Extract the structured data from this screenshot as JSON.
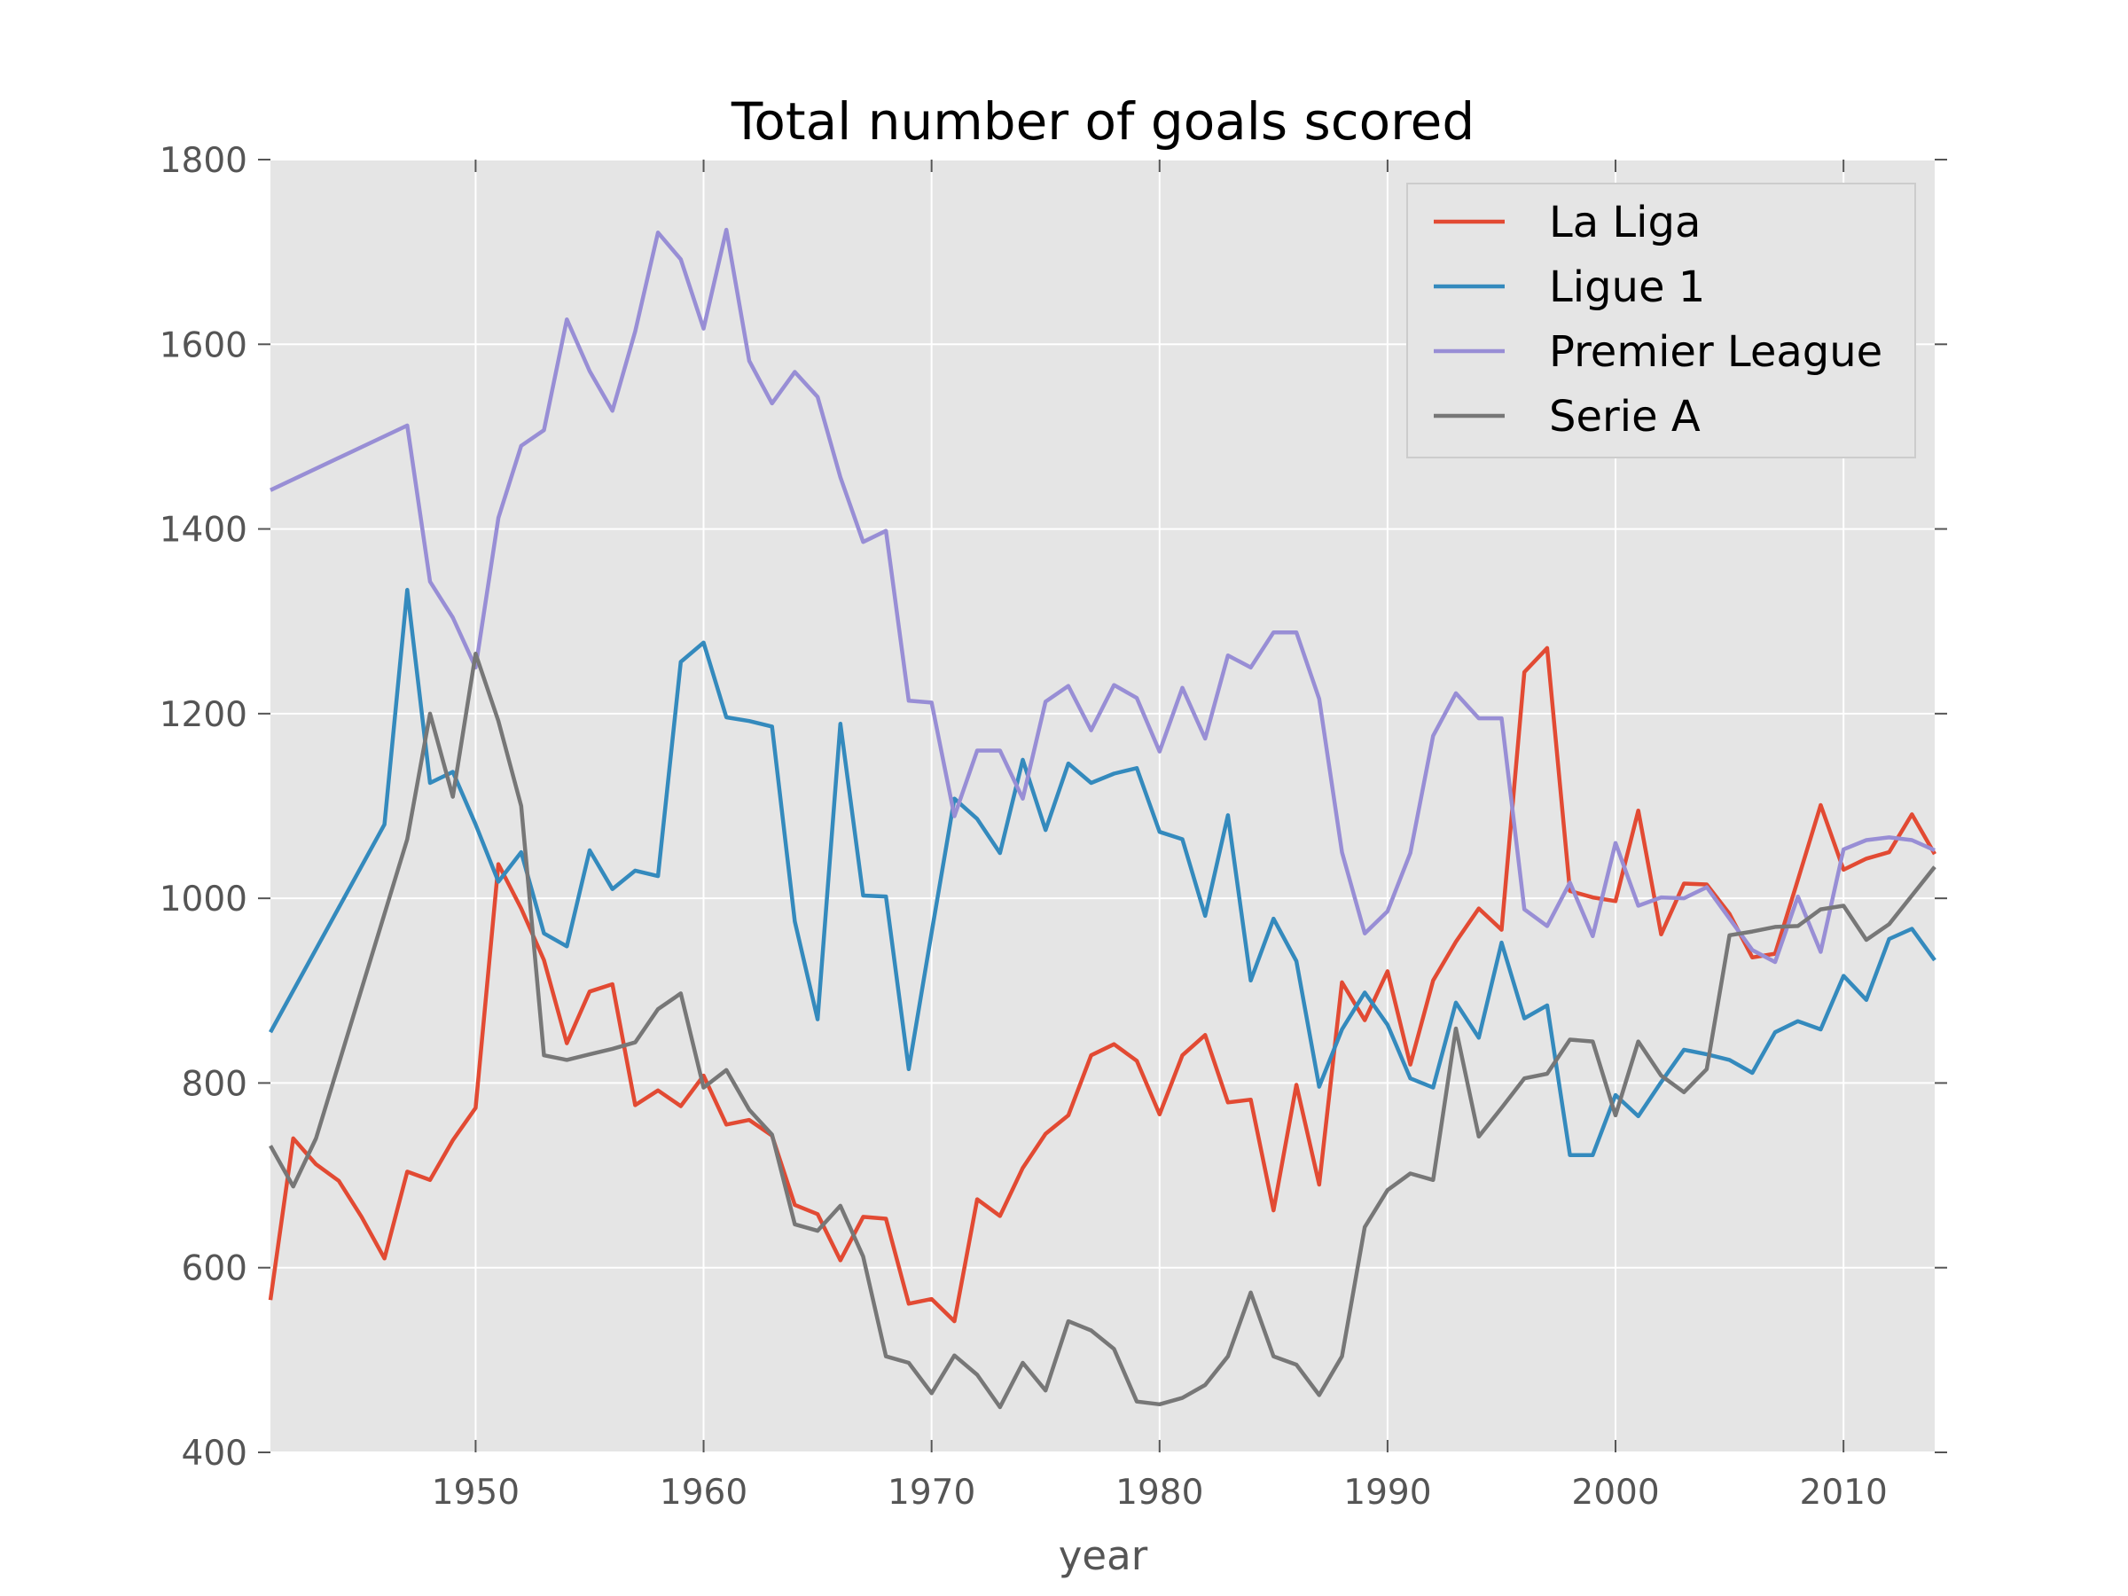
{
  "chart_data": {
    "type": "line",
    "title": "Total number of goals scored",
    "xlabel": "year",
    "ylabel": "",
    "xlim": [
      1941,
      2014
    ],
    "ylim": [
      400,
      1800
    ],
    "x_ticks": [
      1950,
      1960,
      1970,
      1980,
      1990,
      2000,
      2010
    ],
    "y_ticks": [
      400,
      600,
      800,
      1000,
      1200,
      1400,
      1600,
      1800
    ],
    "grid": true,
    "legend_position": "top-right",
    "background_color": "#e5e5e5",
    "series": [
      {
        "name": "La Liga",
        "color": "#e24a33",
        "points": [
          [
            1941,
            565
          ],
          [
            1942,
            740
          ],
          [
            1943,
            712
          ],
          [
            1944,
            694
          ],
          [
            1945,
            655
          ],
          [
            1946,
            610
          ],
          [
            1947,
            704
          ],
          [
            1948,
            695
          ],
          [
            1949,
            738
          ],
          [
            1950,
            773
          ],
          [
            1951,
            1037
          ],
          [
            1952,
            989
          ],
          [
            1953,
            933
          ],
          [
            1954,
            843
          ],
          [
            1955,
            899
          ],
          [
            1956,
            907
          ],
          [
            1957,
            776
          ],
          [
            1958,
            792
          ],
          [
            1959,
            775
          ],
          [
            1960,
            808
          ],
          [
            1961,
            755
          ],
          [
            1962,
            760
          ],
          [
            1963,
            743
          ],
          [
            1964,
            668
          ],
          [
            1965,
            658
          ],
          [
            1966,
            608
          ],
          [
            1967,
            655
          ],
          [
            1968,
            653
          ],
          [
            1969,
            561
          ],
          [
            1970,
            566
          ],
          [
            1971,
            542
          ],
          [
            1972,
            674
          ],
          [
            1973,
            656
          ],
          [
            1974,
            708
          ],
          [
            1975,
            745
          ],
          [
            1976,
            765
          ],
          [
            1977,
            830
          ],
          [
            1978,
            842
          ],
          [
            1979,
            824
          ],
          [
            1980,
            766
          ],
          [
            1981,
            830
          ],
          [
            1982,
            852
          ],
          [
            1983,
            779
          ],
          [
            1984,
            782
          ],
          [
            1985,
            662
          ],
          [
            1986,
            798
          ],
          [
            1987,
            690
          ],
          [
            1988,
            909
          ],
          [
            1989,
            868
          ],
          [
            1990,
            921
          ],
          [
            1991,
            820
          ],
          [
            1992,
            911
          ],
          [
            1993,
            953
          ],
          [
            1994,
            989
          ],
          [
            1995,
            966
          ],
          [
            1996,
            1245
          ],
          [
            1997,
            1271
          ],
          [
            1998,
            1008
          ],
          [
            1999,
            1001
          ],
          [
            2000,
            997
          ],
          [
            2001,
            1095
          ],
          [
            2002,
            961
          ],
          [
            2003,
            1016
          ],
          [
            2004,
            1015
          ],
          [
            2005,
            983
          ],
          [
            2006,
            936
          ],
          [
            2007,
            940
          ],
          [
            2008,
            1020
          ],
          [
            2009,
            1101
          ],
          [
            2010,
            1031
          ],
          [
            2011,
            1043
          ],
          [
            2012,
            1050
          ],
          [
            2013,
            1091
          ],
          [
            2014,
            1048
          ]
        ]
      },
      {
        "name": "Ligue 1",
        "color": "#348abd",
        "points": [
          [
            1941,
            855
          ],
          [
            1946,
            1080
          ],
          [
            1947,
            1334
          ],
          [
            1948,
            1125
          ],
          [
            1949,
            1137
          ],
          [
            1950,
            1080
          ],
          [
            1951,
            1018
          ],
          [
            1952,
            1050
          ],
          [
            1953,
            962
          ],
          [
            1954,
            948
          ],
          [
            1955,
            1052
          ],
          [
            1956,
            1010
          ],
          [
            1957,
            1030
          ],
          [
            1958,
            1024
          ],
          [
            1959,
            1256
          ],
          [
            1960,
            1277
          ],
          [
            1961,
            1196
          ],
          [
            1962,
            1192
          ],
          [
            1963,
            1186
          ],
          [
            1964,
            975
          ],
          [
            1965,
            869
          ],
          [
            1966,
            1189
          ],
          [
            1967,
            1003
          ],
          [
            1968,
            1002
          ],
          [
            1969,
            815
          ],
          [
            1970,
            963
          ],
          [
            1971,
            1108
          ],
          [
            1972,
            1086
          ],
          [
            1973,
            1049
          ],
          [
            1974,
            1150
          ],
          [
            1975,
            1074
          ],
          [
            1976,
            1146
          ],
          [
            1977,
            1125
          ],
          [
            1978,
            1135
          ],
          [
            1979,
            1141
          ],
          [
            1980,
            1072
          ],
          [
            1981,
            1064
          ],
          [
            1982,
            981
          ],
          [
            1983,
            1090
          ],
          [
            1984,
            911
          ],
          [
            1985,
            978
          ],
          [
            1986,
            932
          ],
          [
            1987,
            796
          ],
          [
            1988,
            858
          ],
          [
            1989,
            898
          ],
          [
            1990,
            863
          ],
          [
            1991,
            805
          ],
          [
            1992,
            795
          ],
          [
            1993,
            887
          ],
          [
            1994,
            849
          ],
          [
            1995,
            952
          ],
          [
            1996,
            870
          ],
          [
            1997,
            884
          ],
          [
            1998,
            722
          ],
          [
            1999,
            722
          ],
          [
            2000,
            787
          ],
          [
            2001,
            764
          ],
          [
            2002,
            801
          ],
          [
            2003,
            836
          ],
          [
            2004,
            831
          ],
          [
            2005,
            825
          ],
          [
            2006,
            811
          ],
          [
            2007,
            855
          ],
          [
            2008,
            867
          ],
          [
            2009,
            858
          ],
          [
            2010,
            916
          ],
          [
            2011,
            890
          ],
          [
            2012,
            956
          ],
          [
            2013,
            967
          ],
          [
            2014,
            933
          ]
        ]
      },
      {
        "name": "Premier League",
        "color": "#988ed5",
        "points": [
          [
            1941,
            1442
          ],
          [
            1947,
            1512
          ],
          [
            1948,
            1343
          ],
          [
            1949,
            1304
          ],
          [
            1950,
            1250
          ],
          [
            1951,
            1412
          ],
          [
            1952,
            1490
          ],
          [
            1953,
            1507
          ],
          [
            1954,
            1627
          ],
          [
            1955,
            1571
          ],
          [
            1956,
            1528
          ],
          [
            1957,
            1614
          ],
          [
            1958,
            1721
          ],
          [
            1959,
            1692
          ],
          [
            1960,
            1617
          ],
          [
            1961,
            1724
          ],
          [
            1962,
            1582
          ],
          [
            1963,
            1536
          ],
          [
            1964,
            1570
          ],
          [
            1965,
            1543
          ],
          [
            1966,
            1456
          ],
          [
            1967,
            1386
          ],
          [
            1968,
            1398
          ],
          [
            1969,
            1214
          ],
          [
            1970,
            1212
          ],
          [
            1971,
            1089
          ],
          [
            1972,
            1160
          ],
          [
            1973,
            1160
          ],
          [
            1974,
            1108
          ],
          [
            1975,
            1213
          ],
          [
            1976,
            1230
          ],
          [
            1977,
            1182
          ],
          [
            1978,
            1231
          ],
          [
            1979,
            1217
          ],
          [
            1980,
            1159
          ],
          [
            1981,
            1228
          ],
          [
            1982,
            1173
          ],
          [
            1983,
            1263
          ],
          [
            1984,
            1250
          ],
          [
            1985,
            1288
          ],
          [
            1986,
            1288
          ],
          [
            1987,
            1216
          ],
          [
            1988,
            1050
          ],
          [
            1989,
            962
          ],
          [
            1990,
            986
          ],
          [
            1991,
            1049
          ],
          [
            1992,
            1176
          ],
          [
            1993,
            1222
          ],
          [
            1994,
            1195
          ],
          [
            1995,
            1195
          ],
          [
            1996,
            988
          ],
          [
            1997,
            970
          ],
          [
            1998,
            1017
          ],
          [
            1999,
            959
          ],
          [
            2000,
            1060
          ],
          [
            2001,
            992
          ],
          [
            2002,
            1001
          ],
          [
            2003,
            1000
          ],
          [
            2004,
            1012
          ],
          [
            2005,
            978
          ],
          [
            2006,
            944
          ],
          [
            2007,
            931
          ],
          [
            2008,
            1002
          ],
          [
            2009,
            942
          ],
          [
            2010,
            1053
          ],
          [
            2011,
            1063
          ],
          [
            2012,
            1066
          ],
          [
            2013,
            1063
          ],
          [
            2014,
            1052
          ]
        ]
      },
      {
        "name": "Serie A",
        "color": "#777777",
        "points": [
          [
            1941,
            732
          ],
          [
            1942,
            688
          ],
          [
            1943,
            740
          ],
          [
            1947,
            1064
          ],
          [
            1948,
            1200
          ],
          [
            1949,
            1110
          ],
          [
            1950,
            1265
          ],
          [
            1951,
            1192
          ],
          [
            1952,
            1100
          ],
          [
            1953,
            830
          ],
          [
            1954,
            825
          ],
          [
            1955,
            831
          ],
          [
            1956,
            837
          ],
          [
            1957,
            844
          ],
          [
            1958,
            880
          ],
          [
            1959,
            897
          ],
          [
            1960,
            795
          ],
          [
            1961,
            814
          ],
          [
            1962,
            771
          ],
          [
            1963,
            744
          ],
          [
            1964,
            647
          ],
          [
            1965,
            640
          ],
          [
            1966,
            667
          ],
          [
            1967,
            612
          ],
          [
            1968,
            504
          ],
          [
            1969,
            497
          ],
          [
            1970,
            464
          ],
          [
            1971,
            505
          ],
          [
            1972,
            484
          ],
          [
            1973,
            449
          ],
          [
            1974,
            497
          ],
          [
            1975,
            467
          ],
          [
            1976,
            542
          ],
          [
            1977,
            532
          ],
          [
            1978,
            512
          ],
          [
            1979,
            455
          ],
          [
            1980,
            452
          ],
          [
            1981,
            459
          ],
          [
            1982,
            473
          ],
          [
            1983,
            504
          ],
          [
            1984,
            573
          ],
          [
            1985,
            504
          ],
          [
            1986,
            495
          ],
          [
            1987,
            462
          ],
          [
            1988,
            504
          ],
          [
            1989,
            644
          ],
          [
            1990,
            684
          ],
          [
            1991,
            702
          ],
          [
            1992,
            695
          ],
          [
            1993,
            859
          ],
          [
            1994,
            742
          ],
          [
            1995,
            773
          ],
          [
            1996,
            805
          ],
          [
            1997,
            810
          ],
          [
            1998,
            847
          ],
          [
            1999,
            845
          ],
          [
            2000,
            765
          ],
          [
            2001,
            845
          ],
          [
            2002,
            808
          ],
          [
            2003,
            790
          ],
          [
            2004,
            815
          ],
          [
            2005,
            960
          ],
          [
            2006,
            964
          ],
          [
            2007,
            969
          ],
          [
            2008,
            970
          ],
          [
            2009,
            988
          ],
          [
            2010,
            992
          ],
          [
            2011,
            955
          ],
          [
            2012,
            972
          ],
          [
            2013,
            1003
          ],
          [
            2014,
            1034
          ]
        ]
      }
    ]
  }
}
